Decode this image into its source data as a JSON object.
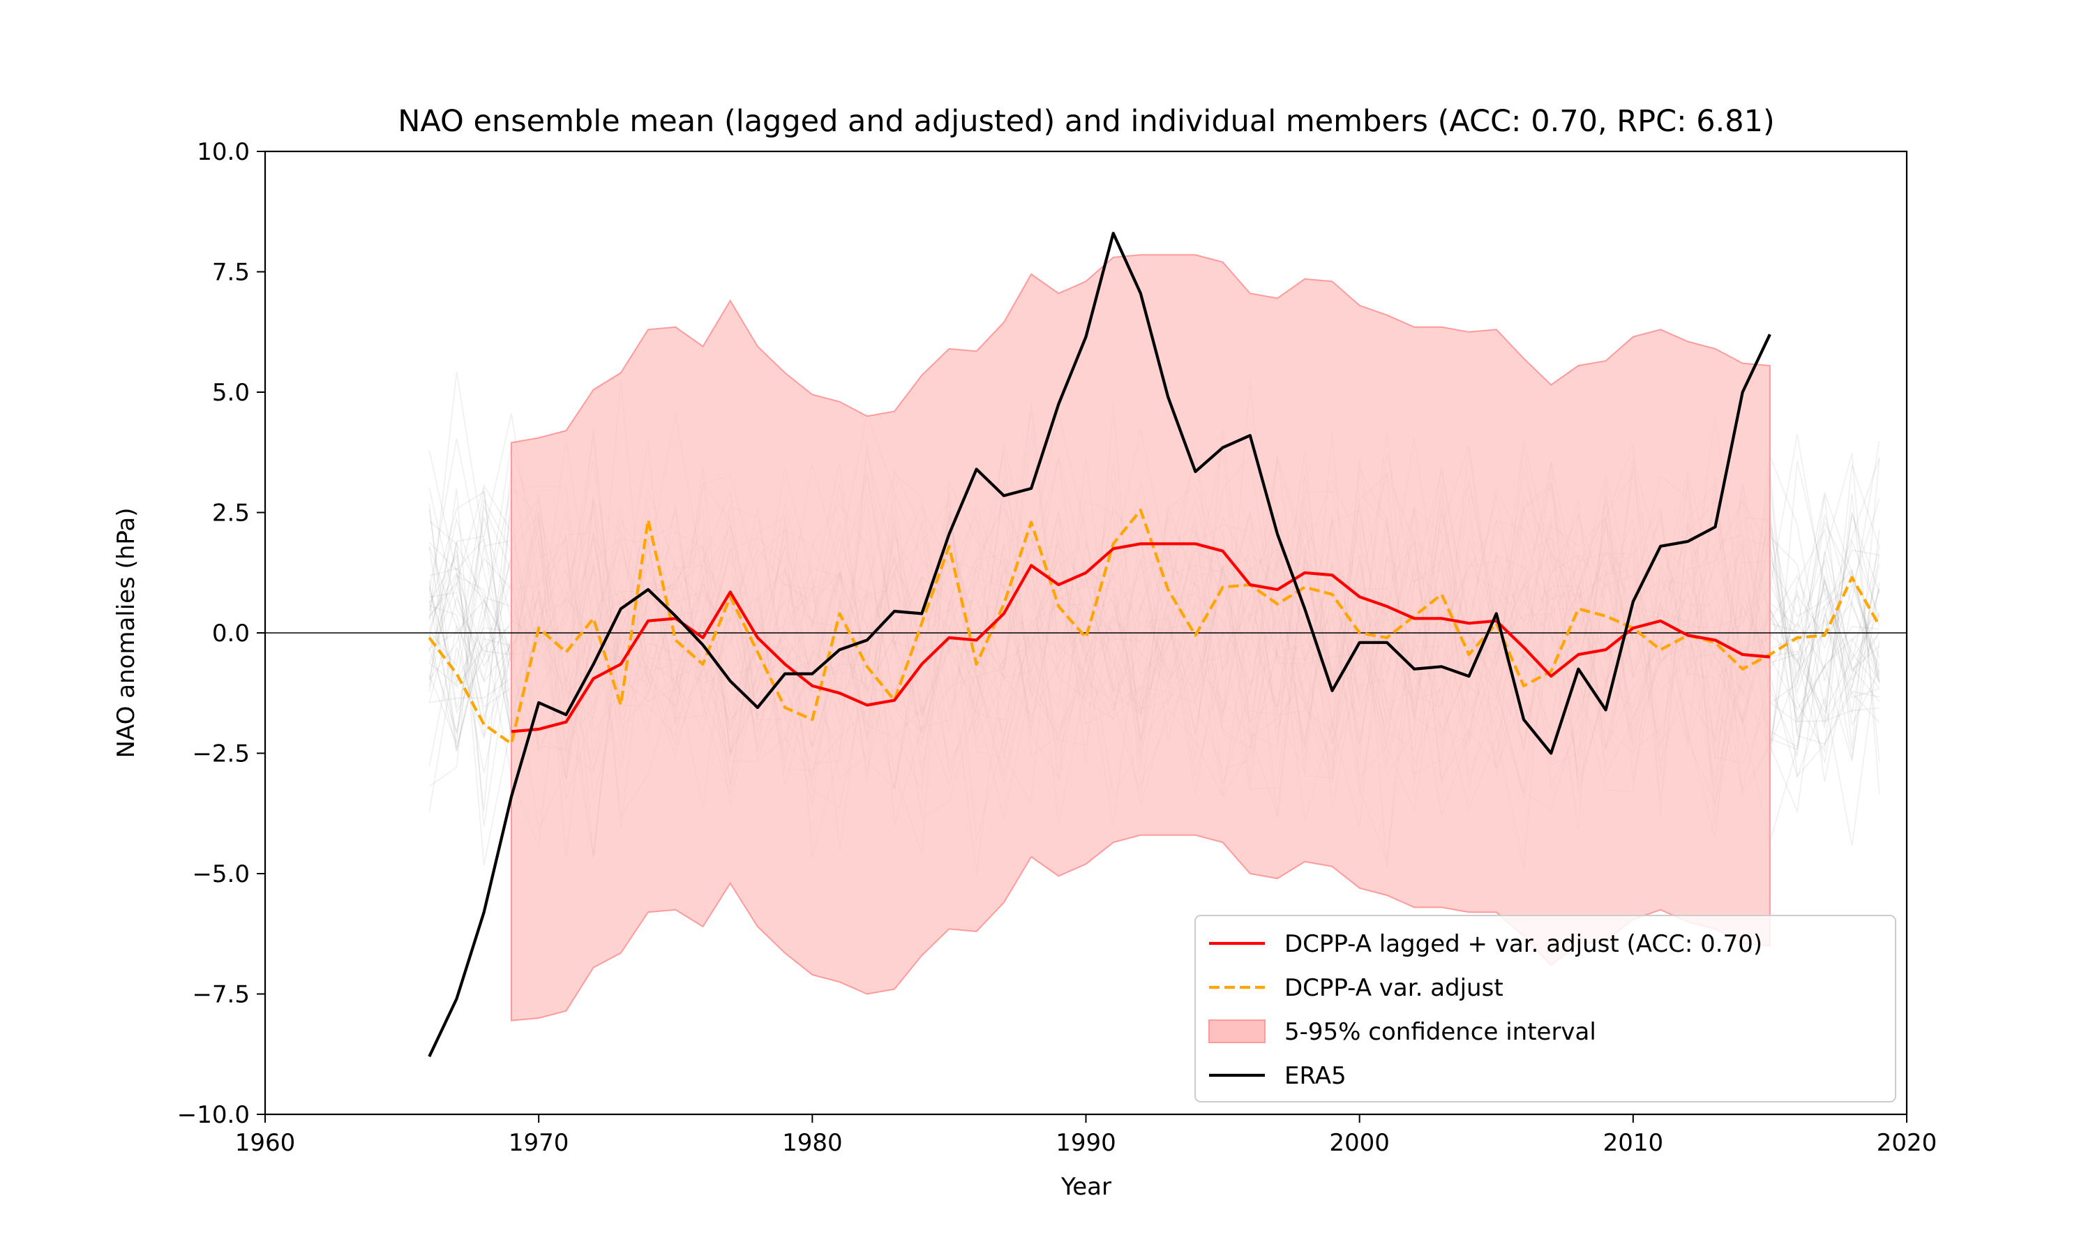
{
  "chart_data": {
    "type": "line",
    "title": "NAO ensemble mean (lagged and adjusted) and individual members (ACC: 0.70, RPC: 6.81)",
    "xlabel": "Year",
    "ylabel": "NAO anomalies (hPa)",
    "xlim": [
      1960,
      2020
    ],
    "ylim": [
      -10.0,
      10.0
    ],
    "x_ticks": [
      "1960",
      "1970",
      "1980",
      "1990",
      "2000",
      "2010",
      "2020"
    ],
    "y_ticks": [
      "−10.0",
      "−7.5",
      "−5.0",
      "−2.5",
      "0.0",
      "2.5",
      "5.0",
      "7.5",
      "10.0"
    ],
    "x_tick_values": [
      1960,
      1970,
      1980,
      1990,
      2000,
      2010,
      2020
    ],
    "y_tick_values": [
      -10,
      -7.5,
      -5,
      -2.5,
      0,
      2.5,
      5,
      7.5,
      10
    ],
    "grid": false,
    "zero_line": true,
    "legend_position": "bottom-right",
    "legend": [
      "DCPP-A lagged + var. adjust (ACC: 0.70)",
      "DCPP-A var. adjust",
      "5-95% confidence interval",
      "ERA5"
    ],
    "colors": {
      "lagged": "#ff0000",
      "var_adjust": "#ffa500",
      "ci_fill": "#ffc0c0",
      "ci_edge": "#ff9a9a",
      "era5": "#000000",
      "members": "#808080"
    },
    "members": {
      "description_range": [
        1966,
        2019
      ],
      "count": 40,
      "spread_hPa": 3.2
    },
    "series": [
      {
        "name": "DCPP-A lagged + var. adjust (ACC: 0.70)",
        "style": "solid",
        "x": [
          1969,
          1970,
          1971,
          1972,
          1973,
          1974,
          1975,
          1976,
          1977,
          1978,
          1979,
          1980,
          1981,
          1982,
          1983,
          1984,
          1985,
          1986,
          1987,
          1988,
          1989,
          1990,
          1991,
          1992,
          1993,
          1994,
          1995,
          1996,
          1997,
          1998,
          1999,
          2000,
          2001,
          2002,
          2003,
          2004,
          2005,
          2006,
          2007,
          2008,
          2009,
          2010,
          2011,
          2012,
          2013,
          2014,
          2015
        ],
        "y": [
          -2.05,
          -2.0,
          -1.85,
          -0.95,
          -0.65,
          0.25,
          0.3,
          -0.1,
          0.85,
          -0.1,
          -0.65,
          -1.1,
          -1.25,
          -1.5,
          -1.4,
          -0.65,
          -0.1,
          -0.15,
          0.4,
          1.4,
          1.0,
          1.25,
          1.75,
          1.85,
          1.85,
          1.85,
          1.7,
          1.0,
          0.9,
          1.25,
          1.2,
          0.75,
          0.55,
          0.3,
          0.3,
          0.2,
          0.25,
          -0.3,
          -0.9,
          -0.45,
          -0.35,
          0.1,
          0.25,
          -0.05,
          -0.15,
          -0.45,
          -0.5
        ]
      },
      {
        "name": "DCPP-A var. adjust",
        "style": "dashed",
        "x": [
          1966,
          1967,
          1968,
          1969,
          1970,
          1971,
          1972,
          1973,
          1974,
          1975,
          1976,
          1977,
          1978,
          1979,
          1980,
          1981,
          1982,
          1983,
          1984,
          1985,
          1986,
          1987,
          1988,
          1989,
          1990,
          1991,
          1992,
          1993,
          1994,
          1995,
          1996,
          1997,
          1998,
          1999,
          2000,
          2001,
          2002,
          2003,
          2004,
          2005,
          2006,
          2007,
          2008,
          2009,
          2010,
          2011,
          2012,
          2013,
          2014,
          2015,
          2016,
          2017,
          2018,
          2019
        ],
        "y": [
          -0.1,
          -0.85,
          -1.9,
          -2.3,
          0.1,
          -0.4,
          0.3,
          -1.5,
          2.35,
          -0.15,
          -0.65,
          0.75,
          -0.4,
          -1.55,
          -1.8,
          0.4,
          -0.7,
          -1.4,
          0.2,
          1.8,
          -0.65,
          0.6,
          2.3,
          0.55,
          -0.1,
          1.85,
          2.55,
          0.9,
          -0.05,
          0.95,
          1.0,
          0.6,
          0.95,
          0.8,
          0.0,
          -0.1,
          0.35,
          0.8,
          -0.45,
          0.2,
          -1.1,
          -0.8,
          0.5,
          0.35,
          0.1,
          -0.35,
          -0.05,
          -0.2,
          -0.75,
          -0.45,
          -0.1,
          -0.05,
          1.15,
          0.15
        ]
      },
      {
        "name": "5-95% confidence interval",
        "style": "band",
        "x": [
          1969,
          1970,
          1971,
          1972,
          1973,
          1974,
          1975,
          1976,
          1977,
          1978,
          1979,
          1980,
          1981,
          1982,
          1983,
          1984,
          1985,
          1986,
          1987,
          1988,
          1989,
          1990,
          1991,
          1992,
          1993,
          1994,
          1995,
          1996,
          1997,
          1998,
          1999,
          2000,
          2001,
          2002,
          2003,
          2004,
          2005,
          2006,
          2007,
          2008,
          2009,
          2010,
          2011,
          2012,
          2013,
          2014,
          2015
        ],
        "upper": [
          3.95,
          4.05,
          4.2,
          5.05,
          5.4,
          6.3,
          6.35,
          5.95,
          6.9,
          5.95,
          5.4,
          4.95,
          4.8,
          4.5,
          4.6,
          5.35,
          5.9,
          5.85,
          6.45,
          7.45,
          7.05,
          7.3,
          7.8,
          7.85,
          7.85,
          7.85,
          7.7,
          7.05,
          6.95,
          7.35,
          7.3,
          6.8,
          6.6,
          6.35,
          6.35,
          6.25,
          6.3,
          5.7,
          5.15,
          5.55,
          5.65,
          6.15,
          6.3,
          6.05,
          5.9,
          5.6,
          5.55
        ],
        "lower": [
          -8.05,
          -8.0,
          -7.85,
          -6.95,
          -6.65,
          -5.8,
          -5.75,
          -6.1,
          -5.2,
          -6.1,
          -6.65,
          -7.1,
          -7.25,
          -7.5,
          -7.4,
          -6.7,
          -6.15,
          -6.2,
          -5.6,
          -4.65,
          -5.05,
          -4.8,
          -4.35,
          -4.2,
          -4.2,
          -4.2,
          -4.35,
          -5.0,
          -5.1,
          -4.75,
          -4.85,
          -5.3,
          -5.45,
          -5.7,
          -5.7,
          -5.8,
          -5.8,
          -6.3,
          -6.9,
          -6.45,
          -6.4,
          -5.95,
          -5.75,
          -6.0,
          -6.15,
          -6.45,
          -6.5
        ]
      },
      {
        "name": "ERA5",
        "style": "solid",
        "x": [
          1966,
          1967,
          1968,
          1969,
          1970,
          1971,
          1972,
          1973,
          1974,
          1975,
          1976,
          1977,
          1978,
          1979,
          1980,
          1981,
          1982,
          1983,
          1984,
          1985,
          1986,
          1987,
          1988,
          1989,
          1990,
          1991,
          1992,
          1993,
          1994,
          1995,
          1996,
          1997,
          1998,
          1999,
          2000,
          2001,
          2002,
          2003,
          2004,
          2005,
          2006,
          2007,
          2008,
          2009,
          2010,
          2011,
          2012,
          2013,
          2014,
          2015
        ],
        "y": [
          -8.8,
          -7.6,
          -5.8,
          -3.4,
          -1.45,
          -1.7,
          -0.65,
          0.5,
          0.9,
          0.35,
          -0.25,
          -1.0,
          -1.55,
          -0.85,
          -0.85,
          -0.35,
          -0.15,
          0.45,
          0.4,
          2.05,
          3.4,
          2.85,
          3.0,
          4.75,
          6.15,
          8.3,
          7.05,
          4.9,
          3.35,
          3.85,
          4.1,
          2.05,
          0.5,
          -1.2,
          -0.2,
          -0.2,
          -0.75,
          -0.7,
          -0.9,
          0.4,
          -1.8,
          -2.5,
          -0.75,
          -1.6,
          0.65,
          1.8,
          1.9,
          2.2,
          5.0,
          6.2
        ]
      }
    ]
  }
}
